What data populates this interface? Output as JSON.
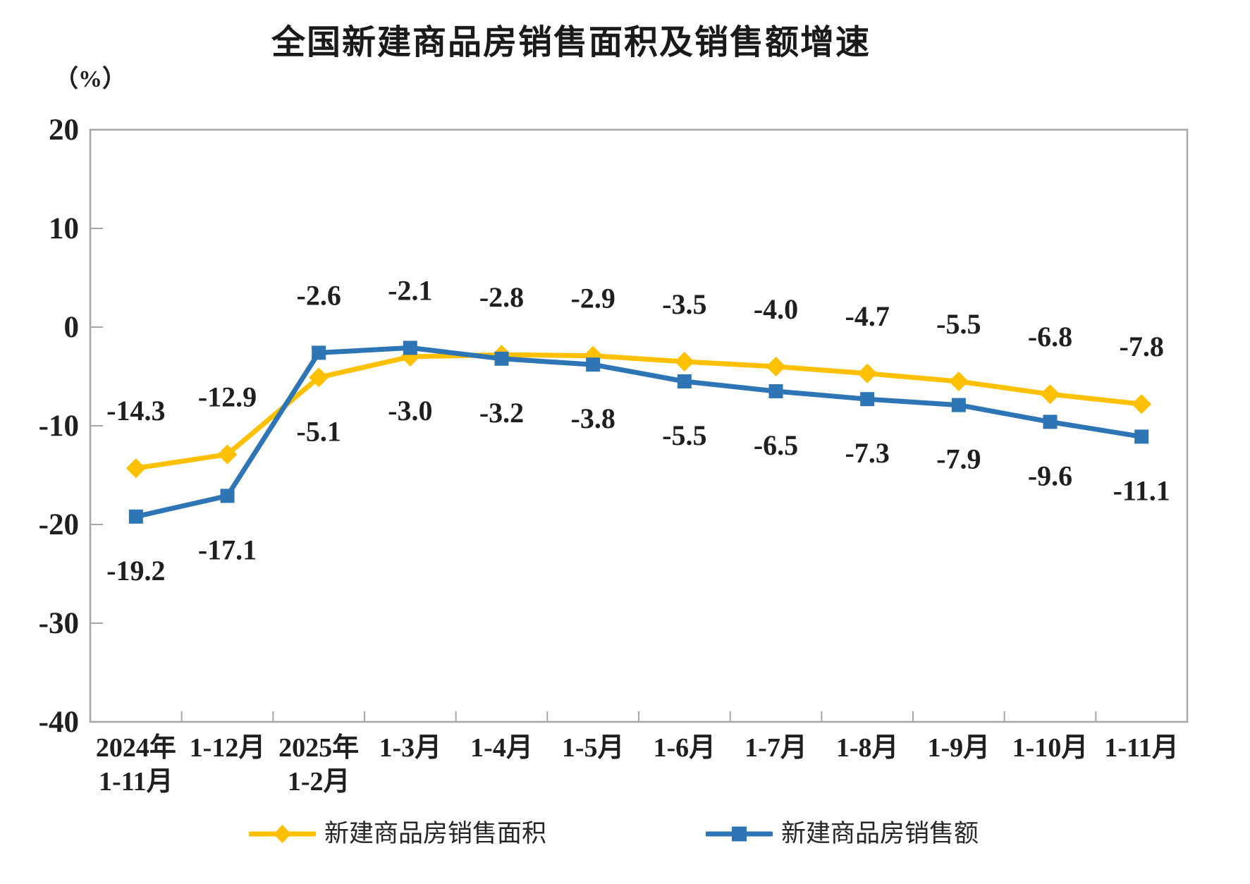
{
  "title": "全国新建商品房销售面积及销售额增速",
  "y_axis_unit": "（%）",
  "chart_data": {
    "type": "line",
    "categories": [
      "2024年\n1-11月",
      "1-12月",
      "2025年\n1-2月",
      "1-3月",
      "1-4月",
      "1-5月",
      "1-6月",
      "1-7月",
      "1-8月",
      "1-9月",
      "1-10月",
      "1-11月"
    ],
    "series": [
      {
        "name": "新建商品房销售面积",
        "color": "#FFC000",
        "marker": "diamond",
        "values": [
          -14.3,
          -12.9,
          -5.1,
          -3.0,
          -2.8,
          -2.9,
          -3.5,
          -4.0,
          -4.7,
          -5.5,
          -6.8,
          -7.8
        ],
        "labels": [
          "-14.3",
          "-12.9",
          "-5.1",
          "-3.0",
          "-2.8",
          "-2.9",
          "-3.5",
          "-4.0",
          "-4.7",
          "-5.5",
          "-6.8",
          "-7.8"
        ],
        "label_side": [
          "above",
          "above",
          "below",
          "below",
          "above",
          "above",
          "above",
          "above",
          "above",
          "above",
          "above",
          "above"
        ]
      },
      {
        "name": "新建商品房销售额",
        "color": "#2E75B6",
        "marker": "square",
        "values": [
          -19.2,
          -17.1,
          -2.6,
          -2.1,
          -3.2,
          -3.8,
          -5.5,
          -6.5,
          -7.3,
          -7.9,
          -9.6,
          -11.1
        ],
        "labels": [
          "-19.2",
          "-17.1",
          "-2.6",
          "-2.1",
          "-3.2",
          "-3.8",
          "-5.5",
          "-6.5",
          "-7.3",
          "-7.9",
          "-9.6",
          "-11.1"
        ],
        "label_side": [
          "below",
          "below",
          "above",
          "above",
          "below",
          "below",
          "below",
          "below",
          "below",
          "below",
          "below",
          "below"
        ]
      }
    ],
    "ylim": [
      -40,
      20
    ],
    "yticks": [
      20,
      10,
      0,
      -10,
      -20,
      -30,
      -40
    ],
    "grid": false,
    "legend_position": "bottom",
    "axis_color": "#A6A6A6",
    "label_color": "#1f1f1f"
  }
}
